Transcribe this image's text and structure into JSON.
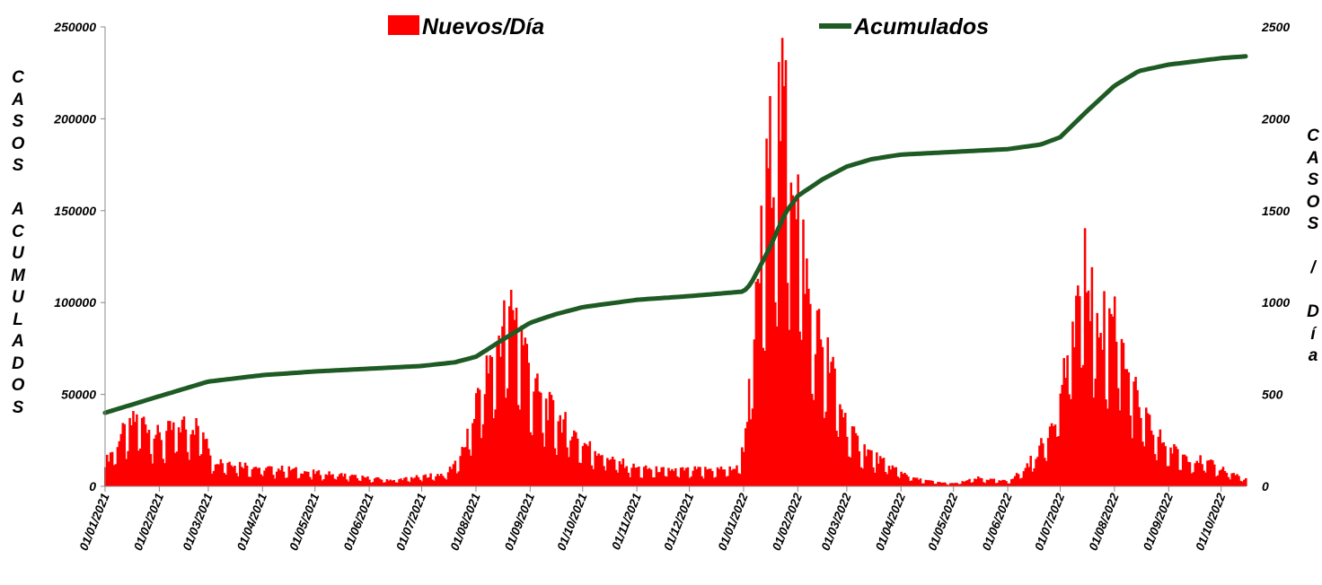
{
  "chart_data": {
    "type": "bar+line",
    "title": "",
    "legend": [
      "Nuevos/Día",
      "Acumulados"
    ],
    "legend_position": "top",
    "y_left": {
      "label": "CASOS ACUMULADOS",
      "ylim": [
        0,
        250000
      ],
      "ticks": [
        "0",
        "50000",
        "100000",
        "150000",
        "200000",
        "250000"
      ]
    },
    "y_right": {
      "label": "CASOS / Día",
      "ylim": [
        0,
        2500
      ],
      "ticks": [
        "0",
        "500",
        "1000",
        "1500",
        "2000",
        "2500"
      ]
    },
    "x_ticks": [
      "01/01/2021",
      "01/02/2021",
      "01/03/2021",
      "01/04/2021",
      "01/05/2021",
      "01/06/2021",
      "01/07/2021",
      "01/08/2021",
      "01/09/2021",
      "01/10/2021",
      "01/11/2021",
      "01/12/2021",
      "01/01/2022",
      "01/02/2022",
      "01/03/2022",
      "01/04/2022",
      "01/05/2022",
      "01/06/2022",
      "01/07/2022",
      "01/08/2022",
      "01/09/2022",
      "01/10/2022"
    ],
    "x_range": [
      "2021-01-01",
      "2022-10-15"
    ],
    "series": [
      {
        "name": "Nuevos/Día",
        "axis": "right",
        "kind": "bar",
        "color": "#ff0000",
        "keypoints": [
          [
            "2021-01-01",
            130
          ],
          [
            "2021-01-10",
            280
          ],
          [
            "2021-01-20",
            380
          ],
          [
            "2021-01-25",
            340
          ],
          [
            "2021-02-01",
            270
          ],
          [
            "2021-02-08",
            310
          ],
          [
            "2021-02-15",
            340
          ],
          [
            "2021-02-22",
            330
          ],
          [
            "2021-02-28",
            280
          ],
          [
            "2021-03-03",
            150
          ],
          [
            "2021-03-15",
            130
          ],
          [
            "2021-04-01",
            100
          ],
          [
            "2021-04-15",
            95
          ],
          [
            "2021-05-01",
            75
          ],
          [
            "2021-05-15",
            65
          ],
          [
            "2021-06-01",
            45
          ],
          [
            "2021-06-15",
            35
          ],
          [
            "2021-07-01",
            55
          ],
          [
            "2021-07-15",
            70
          ],
          [
            "2021-07-25",
            200
          ],
          [
            "2021-08-01",
            450
          ],
          [
            "2021-08-08",
            650
          ],
          [
            "2021-08-15",
            850
          ],
          [
            "2021-08-22",
            1000
          ],
          [
            "2021-08-28",
            800
          ],
          [
            "2021-09-03",
            550
          ],
          [
            "2021-09-10",
            450
          ],
          [
            "2021-09-20",
            350
          ],
          [
            "2021-10-01",
            240
          ],
          [
            "2021-10-10",
            190
          ],
          [
            "2021-10-20",
            140
          ],
          [
            "2021-11-01",
            100
          ],
          [
            "2021-11-15",
            90
          ],
          [
            "2021-12-01",
            90
          ],
          [
            "2021-12-15",
            95
          ],
          [
            "2021-12-28",
            100
          ],
          [
            "2022-01-01",
            220
          ],
          [
            "2022-01-05",
            600
          ],
          [
            "2022-01-10",
            1200
          ],
          [
            "2022-01-15",
            1750
          ],
          [
            "2022-01-20",
            2050
          ],
          [
            "2022-01-25",
            2050
          ],
          [
            "2022-02-01",
            1600
          ],
          [
            "2022-02-08",
            950
          ],
          [
            "2022-02-15",
            800
          ],
          [
            "2022-02-22",
            580
          ],
          [
            "2022-03-01",
            330
          ],
          [
            "2022-03-08",
            230
          ],
          [
            "2022-03-15",
            180
          ],
          [
            "2022-03-22",
            130
          ],
          [
            "2022-04-01",
            80
          ],
          [
            "2022-04-10",
            40
          ],
          [
            "2022-04-20",
            25
          ],
          [
            "2022-05-01",
            15
          ],
          [
            "2022-05-15",
            45
          ],
          [
            "2022-05-28",
            30
          ],
          [
            "2022-06-01",
            30
          ],
          [
            "2022-06-10",
            90
          ],
          [
            "2022-06-20",
            220
          ],
          [
            "2022-06-28",
            420
          ],
          [
            "2022-07-05",
            700
          ],
          [
            "2022-07-10",
            1000
          ],
          [
            "2022-07-15",
            1180
          ],
          [
            "2022-07-20",
            1000
          ],
          [
            "2022-07-25",
            900
          ],
          [
            "2022-08-01",
            950
          ],
          [
            "2022-08-05",
            850
          ],
          [
            "2022-08-10",
            600
          ],
          [
            "2022-08-15",
            430
          ],
          [
            "2022-08-22",
            320
          ],
          [
            "2022-09-01",
            210
          ],
          [
            "2022-09-10",
            170
          ],
          [
            "2022-09-20",
            140
          ],
          [
            "2022-10-01",
            100
          ],
          [
            "2022-10-10",
            60
          ],
          [
            "2022-10-15",
            40
          ]
        ]
      },
      {
        "name": "Acumulados",
        "axis": "left",
        "kind": "line",
        "color": "#1e5a23",
        "keypoints": [
          [
            "2021-01-01",
            40000
          ],
          [
            "2021-02-01",
            49000
          ],
          [
            "2021-02-15",
            53000
          ],
          [
            "2021-03-01",
            57000
          ],
          [
            "2021-04-01",
            60500
          ],
          [
            "2021-05-01",
            62500
          ],
          [
            "2021-06-01",
            64000
          ],
          [
            "2021-07-01",
            65500
          ],
          [
            "2021-07-20",
            67500
          ],
          [
            "2021-08-01",
            70500
          ],
          [
            "2021-08-15",
            79000
          ],
          [
            "2021-09-01",
            89000
          ],
          [
            "2021-09-15",
            93500
          ],
          [
            "2021-10-01",
            97500
          ],
          [
            "2021-11-01",
            101500
          ],
          [
            "2021-12-01",
            103500
          ],
          [
            "2022-01-01",
            106000
          ],
          [
            "2022-01-05",
            110000
          ],
          [
            "2022-01-15",
            128000
          ],
          [
            "2022-01-25",
            149000
          ],
          [
            "2022-02-01",
            158000
          ],
          [
            "2022-02-15",
            167000
          ],
          [
            "2022-03-01",
            174000
          ],
          [
            "2022-03-15",
            178000
          ],
          [
            "2022-04-01",
            180500
          ],
          [
            "2022-05-01",
            182000
          ],
          [
            "2022-06-01",
            183500
          ],
          [
            "2022-06-20",
            186000
          ],
          [
            "2022-07-01",
            190000
          ],
          [
            "2022-07-15",
            203000
          ],
          [
            "2022-08-01",
            218000
          ],
          [
            "2022-08-15",
            226000
          ],
          [
            "2022-09-01",
            229500
          ],
          [
            "2022-10-01",
            233000
          ],
          [
            "2022-10-15",
            234000
          ]
        ]
      }
    ]
  }
}
